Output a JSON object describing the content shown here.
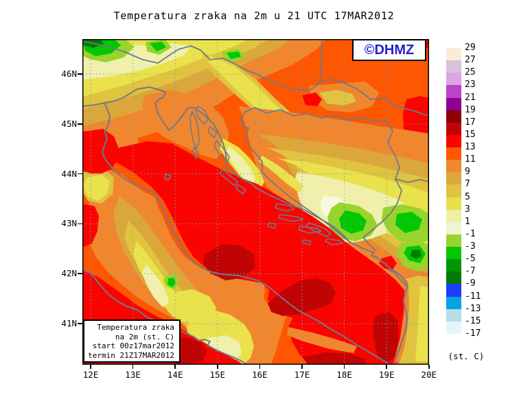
{
  "title": "Temperatura zraka na 2m u 21 UTC 17MAR2012",
  "branding": {
    "label": "©DHMZ",
    "color": "#2222CC"
  },
  "info_box": {
    "lines": [
      "Temperatura zraka",
      "na 2m (st. C)",
      "start 00z17mar2012",
      "termin 21Z17MAR2012"
    ]
  },
  "colorbar": {
    "unit_label": "(st. C)",
    "tick_labels": [
      "29",
      "27",
      "25",
      "23",
      "21",
      "19",
      "17",
      "15",
      "13",
      "11",
      "9",
      "7",
      "5",
      "3",
      "1",
      "-1",
      "-3",
      "-5",
      "-7",
      "-9",
      "-11",
      "-13",
      "-15",
      "-17"
    ],
    "cell_colors": [
      "#FBECD7",
      "#D5C3DD",
      "#DBA6E1",
      "#BB43C6",
      "#8E0190",
      "#8B0002",
      "#C00404",
      "#FA0400",
      "#FE5601",
      "#F0862E",
      "#DCA73A",
      "#E0C33E",
      "#E8E04A",
      "#EFF0A2",
      "#EDF5D4",
      "#98D42D",
      "#02C702",
      "#029702",
      "#017C01",
      "#1C3EF9",
      "#05A3E3",
      "#B7DDE5",
      "#E3F7FB"
    ]
  },
  "axes": {
    "lat_labels": [
      "46N",
      "45N",
      "44N",
      "43N",
      "42N",
      "41N"
    ],
    "lon_labels": [
      "12E",
      "13E",
      "14E",
      "15E",
      "16E",
      "17E",
      "18E",
      "19E",
      "20E"
    ]
  },
  "palette": {
    "orangeRed": "#FE5601",
    "orange": "#F0862E",
    "goldenrod": "#DCA73A",
    "gold": "#E0C33E",
    "yellow": "#E9E24C",
    "paleYellow": "#F0F0AC",
    "ivory": "#F8FAE0",
    "yellowGreen": "#98D42D",
    "green": "#02C702",
    "midGreen": "#029702",
    "darkGreen": "#017C01",
    "red": "#FA0400",
    "darkRed": "#C00404",
    "coast": "#6E7B8B",
    "grid": "#7E9CB8",
    "frame": "#000000"
  }
}
